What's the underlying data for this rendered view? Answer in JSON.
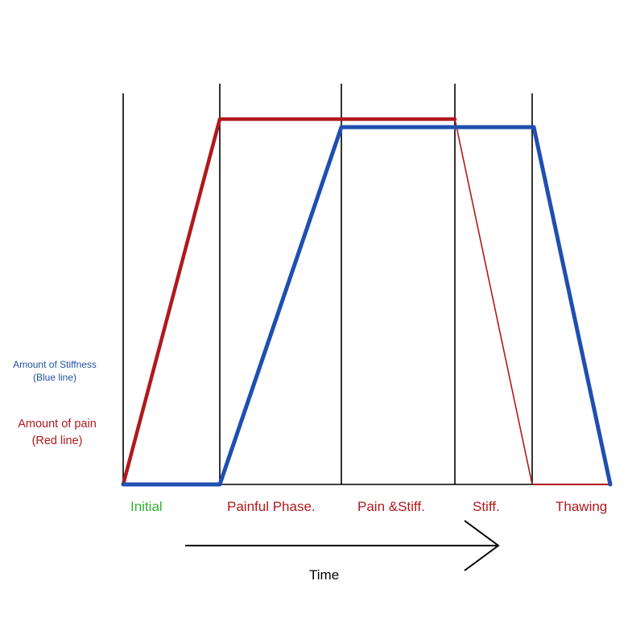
{
  "labels": {
    "stiffness_line1": "Amount of Stiffness",
    "stiffness_line2": "(Blue line)",
    "pain_line1": "Amount of pain",
    "pain_line2": "(Red line)",
    "time": "Time"
  },
  "phases": [
    {
      "label": "Initial",
      "color": "#33b233"
    },
    {
      "label": "Painful Phase.",
      "color": "#b0191d"
    },
    {
      "label": "Pain &Stiff.",
      "color": "#b0191d"
    },
    {
      "label": "Stiff.",
      "color": "#b0191d"
    },
    {
      "label": "Thawing",
      "color": "#b0191d"
    }
  ],
  "colors": {
    "pain_line": "#b0191d",
    "stiffness_line": "#1f4fb0",
    "divider": "#000000"
  }
}
